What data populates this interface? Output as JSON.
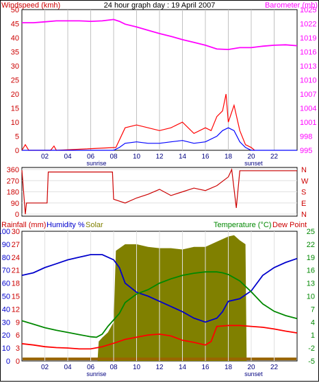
{
  "chart_data": [
    {
      "type": "line",
      "panel": "wind-pressure",
      "title": "24 hour graph day : 19 April 2007",
      "ylabel_left": "Windspeed (kmh)",
      "ylabel_right": "Barometer (mb)",
      "x_ticks": [
        "02",
        "04",
        "06",
        "08",
        "10",
        "12",
        "14",
        "16",
        "18",
        "20",
        "22"
      ],
      "x_annotations": [
        {
          "label": "sunrise",
          "hour": 6.5
        },
        {
          "label": "sunset",
          "hour": 20.2
        }
      ],
      "y_left_ticks": [
        0,
        5,
        10,
        15,
        20,
        25,
        30,
        35,
        40,
        45,
        50
      ],
      "y_right_ticks": [
        995,
        998,
        1001,
        1004,
        1007,
        1010,
        1013,
        1016,
        1019,
        1022,
        1025
      ],
      "series": [
        {
          "name": "Barometer",
          "color": "#ff00ff",
          "axis": "right",
          "x": [
            0,
            1,
            2,
            3,
            4,
            5,
            6,
            7,
            8,
            8.5,
            9,
            10,
            11,
            12,
            13,
            14,
            15,
            16,
            17,
            18,
            19,
            20,
            21,
            22,
            23,
            24
          ],
          "y": [
            1022.2,
            1022.2,
            1022.4,
            1022.6,
            1022.6,
            1022.6,
            1022.5,
            1022.6,
            1022.9,
            1022.5,
            1021.9,
            1021.3,
            1020.6,
            1019.9,
            1019.3,
            1018.6,
            1018.0,
            1017.4,
            1016.6,
            1016.5,
            1016.9,
            1016.9,
            1017.2,
            1017.4,
            1017.5,
            1017.3
          ]
        },
        {
          "name": "Wind gust",
          "color": "#ff0000",
          "axis": "left",
          "x": [
            0,
            0.3,
            0.6,
            2.5,
            2.8,
            3,
            8.2,
            9,
            10,
            11,
            12,
            13,
            14,
            15,
            16,
            16.5,
            17,
            17.5,
            17.8,
            18,
            18.5,
            19,
            19.5,
            20,
            20.3
          ],
          "y": [
            0,
            2,
            0,
            0,
            1.5,
            0,
            1,
            8,
            9,
            8,
            7,
            8,
            10,
            6,
            8,
            7,
            12,
            14,
            20,
            10,
            16,
            7,
            2,
            1,
            0
          ]
        },
        {
          "name": "Wind average",
          "color": "#0000ff",
          "axis": "left",
          "x": [
            0,
            8,
            8.5,
            9,
            10,
            11,
            12,
            13,
            14,
            15,
            16,
            17,
            17.5,
            18,
            18.5,
            19,
            19.5,
            20,
            24
          ],
          "y": [
            0,
            0,
            1,
            2.5,
            3,
            2.5,
            2.5,
            3,
            3.5,
            2.5,
            3,
            5,
            7,
            8,
            7,
            3,
            1,
            0,
            0
          ]
        }
      ]
    },
    {
      "type": "line",
      "panel": "wind-direction",
      "y_ticks": [
        "360",
        "270",
        "180",
        "90",
        "0"
      ],
      "y_right_ticks": [
        "N",
        "W",
        "S",
        "E",
        "N"
      ],
      "series": [
        {
          "name": "Wind direction",
          "color": "#cc0000",
          "x": [
            0,
            0.3,
            0.4,
            2.2,
            2.3,
            7.9,
            8.0,
            9,
            10,
            11,
            12,
            13,
            14,
            15,
            16,
            17,
            18,
            18.3,
            18.7,
            19,
            19.5,
            24
          ],
          "y": [
            355,
            0,
            90,
            90,
            340,
            340,
            120,
            90,
            130,
            160,
            200,
            150,
            180,
            210,
            190,
            230,
            300,
            360,
            50,
            350,
            350,
            350
          ]
        }
      ]
    },
    {
      "type": "line",
      "panel": "temp-humidity",
      "left_label_rainfall": "Rainfall (mm)",
      "left_label_humidity": "Humidity %",
      "left_label_solar": "Solar",
      "right_label_temp": "Temperature (°C)",
      "right_label_dew": "Dew Point",
      "y_left_humidity_ticks": [
        0,
        10,
        20,
        30,
        40,
        50,
        60,
        70,
        80,
        90,
        100
      ],
      "y_left_rain_ticks": [
        0,
        3,
        6,
        9,
        12,
        15,
        18,
        21,
        24,
        27,
        30
      ],
      "y_right_ticks": [
        -5,
        -2,
        1,
        4,
        7,
        10,
        13,
        16,
        19,
        22,
        25
      ],
      "series": [
        {
          "name": "Humidity",
          "color": "#0000cc",
          "axis": "humidity",
          "x": [
            0,
            1,
            2,
            3,
            4,
            5,
            6,
            7,
            8,
            8.5,
            9,
            10,
            11,
            12,
            13,
            14,
            15,
            16,
            17,
            17.5,
            18,
            19,
            20,
            21,
            22,
            23,
            24
          ],
          "y": [
            66,
            68,
            72,
            75,
            78,
            80,
            82,
            82,
            78,
            72,
            60,
            53,
            50,
            46,
            42,
            38,
            33,
            30,
            33,
            38,
            46,
            48,
            54,
            66,
            72,
            76,
            79
          ]
        },
        {
          "name": "Temperature",
          "color": "#008800",
          "axis": "temp",
          "x": [
            0,
            1,
            2,
            3,
            4,
            5,
            6,
            6.5,
            7,
            7.5,
            8,
            8.5,
            9,
            10,
            11,
            12,
            13,
            14,
            15,
            16,
            17,
            17.5,
            18,
            19,
            20,
            21,
            22,
            23,
            24
          ],
          "y": [
            4.3,
            3.5,
            2.7,
            2.1,
            1.6,
            1.1,
            0.6,
            0.5,
            1.2,
            3.0,
            4.5,
            6.0,
            8.5,
            10.5,
            11.5,
            13.0,
            14.0,
            14.8,
            15.3,
            15.6,
            15.6,
            15.4,
            15.0,
            13.5,
            11.0,
            8.2,
            6.5,
            5.5,
            4.8
          ]
        },
        {
          "name": "Dew Point",
          "color": "#ff0000",
          "axis": "temp",
          "x": [
            0,
            1,
            2,
            3,
            4,
            5,
            6,
            7,
            8,
            9,
            10,
            11,
            12,
            13,
            14,
            15,
            16,
            16.5,
            17,
            18,
            19,
            20,
            21,
            22,
            23,
            24
          ],
          "y": [
            -1.0,
            -1.3,
            -1.7,
            -1.9,
            -2.0,
            -2.2,
            -2.2,
            -1.7,
            -0.9,
            0.0,
            0.5,
            1.0,
            1.2,
            0.8,
            -0.2,
            -0.7,
            -1.3,
            -0.5,
            3.0,
            3.2,
            3.2,
            3.0,
            2.8,
            2.4,
            1.9,
            1.5
          ]
        },
        {
          "name": "Solar",
          "color": "#808000",
          "axis": "humidity",
          "fill": true,
          "x": [
            0,
            6.6,
            6.7,
            7.0,
            7.5,
            8.0,
            8.2,
            9,
            10,
            11,
            12,
            13,
            14,
            15,
            16,
            17,
            18,
            18.5,
            19,
            19.5,
            19.6,
            24
          ],
          "y": [
            0,
            0,
            15,
            18,
            22,
            30,
            85,
            90,
            90,
            88,
            87,
            87,
            86,
            88,
            88,
            92,
            96,
            97,
            93,
            90,
            0,
            0
          ]
        },
        {
          "name": "Rainfall",
          "color": "#cc6600",
          "axis": "rain",
          "x": [
            0,
            24
          ],
          "y": [
            0,
            0
          ]
        }
      ]
    }
  ]
}
